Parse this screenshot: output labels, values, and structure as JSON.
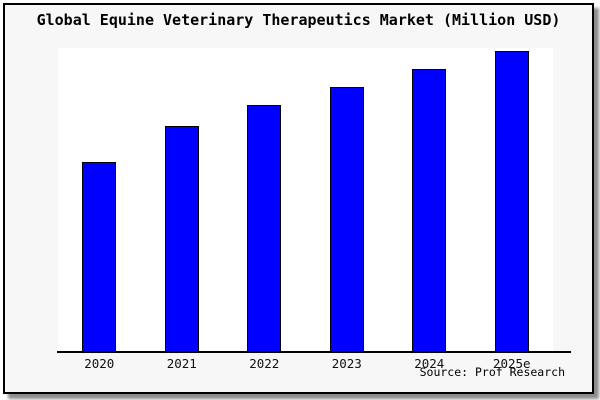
{
  "window": {
    "page_background": "#ffffff",
    "frame_background": "#f7f7f7",
    "frame_border_color": "#000000",
    "shadow_color": "#737373",
    "plot_background": "#ffffff",
    "axis_color": "#000000"
  },
  "title": "Global Equine Veterinary Therapeutics Market (Million USD)",
  "source_credit": "Source: Prof Research",
  "chart_data": {
    "type": "bar",
    "title": "Global Equine Veterinary Therapeutics Market (Million USD)",
    "categories": [
      "2020",
      "2021",
      "2022",
      "2023",
      "2024",
      "2025e"
    ],
    "values": [
      63,
      75,
      82,
      88,
      94,
      100
    ],
    "units": "Million USD",
    "value_note": "no y-axis ticks or gridlines shown; values estimated from relative bar heights, normalized to 2025e = 100",
    "xlabel": "",
    "ylabel": "",
    "ylim": [
      0,
      101
    ],
    "grid": false,
    "legend": "none",
    "bar_color": "#0000ff",
    "bar_border_color": "#000000",
    "source": "Source: Prof Research"
  }
}
